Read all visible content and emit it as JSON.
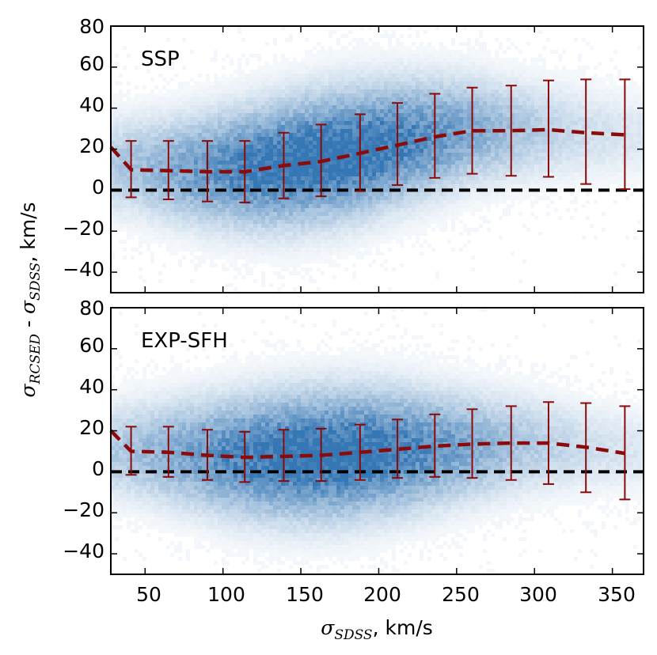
{
  "colors": {
    "hist": "#2a6fb0",
    "trend": "#8b0a0a",
    "zero_line": "#000000",
    "axes": "#000000"
  },
  "chart_data": [
    {
      "type": "scatter",
      "panel_label": "SSP",
      "xlim": [
        28,
        370
      ],
      "ylim": [
        -50,
        80
      ],
      "xticks": [
        50,
        100,
        150,
        200,
        250,
        300,
        350
      ],
      "yticks": [
        -40,
        -20,
        0,
        20,
        40,
        60,
        80
      ],
      "ytick_labels": [
        "−40",
        "−20",
        "0",
        "20",
        "40",
        "60",
        "80"
      ],
      "reference_line_y": 0,
      "trend_x": [
        28,
        41,
        65,
        90,
        114,
        139,
        163,
        188,
        212,
        236,
        260,
        285,
        309,
        333,
        358
      ],
      "trend_y": [
        21,
        10,
        9.5,
        9,
        9,
        12,
        14,
        18,
        22,
        26,
        29,
        29,
        29.5,
        28,
        27
      ],
      "errorbars": [
        {
          "x": 41,
          "center": 10,
          "low": -3.5,
          "high": 24
        },
        {
          "x": 65,
          "center": 9.5,
          "low": -4.5,
          "high": 24
        },
        {
          "x": 90,
          "center": 9,
          "low": -5.5,
          "high": 24
        },
        {
          "x": 114,
          "center": 9,
          "low": -6,
          "high": 24
        },
        {
          "x": 139,
          "center": 12,
          "low": -4,
          "high": 28
        },
        {
          "x": 163,
          "center": 14,
          "low": -3,
          "high": 32
        },
        {
          "x": 188,
          "center": 18,
          "low": -0.5,
          "high": 37
        },
        {
          "x": 212,
          "center": 22,
          "low": 2.5,
          "high": 42.5
        },
        {
          "x": 236,
          "center": 26,
          "low": 6,
          "high": 47
        },
        {
          "x": 260,
          "center": 29,
          "low": 8,
          "high": 50
        },
        {
          "x": 285,
          "center": 29,
          "low": 7,
          "high": 51
        },
        {
          "x": 309,
          "center": 29.5,
          "low": 6.5,
          "high": 53.5
        },
        {
          "x": 333,
          "center": 28,
          "low": 3,
          "high": 54
        },
        {
          "x": 358,
          "center": 27,
          "low": 0.5,
          "high": 54
        }
      ],
      "density_center_y": [
        12,
        10,
        10,
        11,
        13,
        16,
        19,
        23,
        26,
        29,
        29,
        29,
        28,
        27
      ]
    },
    {
      "type": "scatter",
      "panel_label": "EXP-SFH",
      "xlim": [
        28,
        370
      ],
      "ylim": [
        -50,
        80
      ],
      "xticks": [
        50,
        100,
        150,
        200,
        250,
        300,
        350
      ],
      "xtick_labels": [
        "50",
        "100",
        "150",
        "200",
        "250",
        "300",
        "350"
      ],
      "yticks": [
        -40,
        -20,
        0,
        20,
        40,
        60,
        80
      ],
      "ytick_labels": [
        "−40",
        "−20",
        "0",
        "20",
        "40",
        "60",
        "80"
      ],
      "reference_line_y": 0,
      "trend_x": [
        28,
        41,
        65,
        90,
        114,
        139,
        163,
        188,
        212,
        236,
        260,
        285,
        309,
        333,
        358
      ],
      "trend_y": [
        20,
        10,
        9.5,
        8,
        7,
        7.5,
        8,
        9.5,
        11,
        12.5,
        13.5,
        14,
        14,
        12,
        9
      ],
      "errorbars": [
        {
          "x": 41,
          "center": 10,
          "low": -1.5,
          "high": 22
        },
        {
          "x": 65,
          "center": 9.5,
          "low": -2.5,
          "high": 22
        },
        {
          "x": 90,
          "center": 8,
          "low": -4,
          "high": 20.5
        },
        {
          "x": 114,
          "center": 7,
          "low": -5,
          "high": 19.5
        },
        {
          "x": 139,
          "center": 7.5,
          "low": -4.5,
          "high": 20.5
        },
        {
          "x": 163,
          "center": 8,
          "low": -4.5,
          "high": 21
        },
        {
          "x": 188,
          "center": 9.5,
          "low": -4,
          "high": 23
        },
        {
          "x": 212,
          "center": 11,
          "low": -3,
          "high": 25.5
        },
        {
          "x": 236,
          "center": 12.5,
          "low": -2.5,
          "high": 28
        },
        {
          "x": 260,
          "center": 13.5,
          "low": -3,
          "high": 30.5
        },
        {
          "x": 285,
          "center": 14,
          "low": -4,
          "high": 32
        },
        {
          "x": 309,
          "center": 14,
          "low": -6,
          "high": 34
        },
        {
          "x": 333,
          "center": 12,
          "low": -10,
          "high": 33.5
        },
        {
          "x": 358,
          "center": 9,
          "low": -13.5,
          "high": 32
        }
      ],
      "density_center_y": [
        10,
        9,
        8,
        7.5,
        7.5,
        8,
        9,
        10,
        11,
        12,
        13,
        13,
        12,
        10
      ]
    }
  ],
  "axes_labels": {
    "ylabel_math_a": "σ",
    "ylabel_sub_a": "RCSED",
    "ylabel_mid": " - ",
    "ylabel_math_b": "σ",
    "ylabel_sub_b": "SDSS",
    "ylabel_unit": ", km/s",
    "xlabel_math": "σ",
    "xlabel_sub": "SDSS",
    "xlabel_unit": ", km/s"
  }
}
